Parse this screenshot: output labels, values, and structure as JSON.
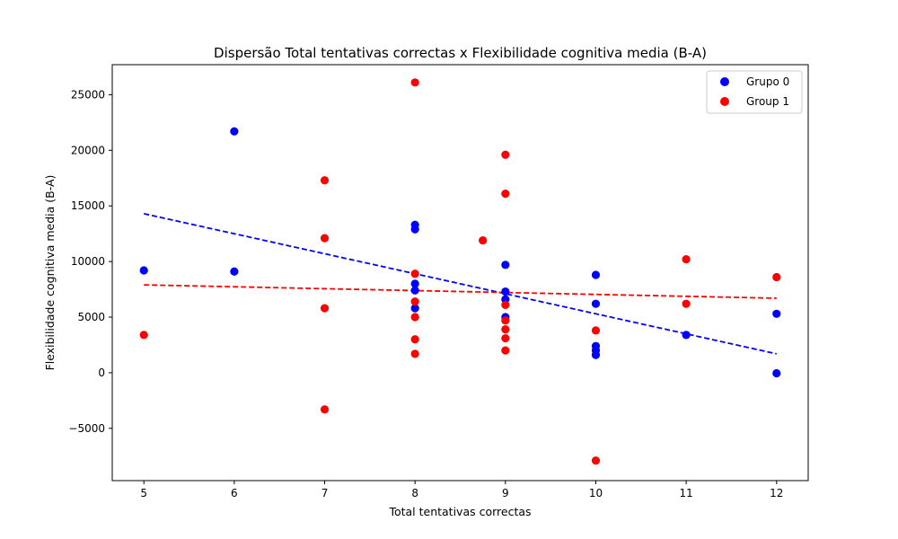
{
  "chart_data": {
    "type": "scatter",
    "title": "Dispersão Total tentativas correctas x Flexibilidade cognitiva media (B-A)",
    "xlabel": "Total tentativas correctas",
    "ylabel": "Flexibilidade cognitiva media (B-A)",
    "xlim": [
      4.65,
      12.35
    ],
    "ylim": [
      -9700,
      27700
    ],
    "xticks": [
      5,
      6,
      7,
      8,
      9,
      10,
      11,
      12
    ],
    "yticks": [
      -5000,
      0,
      5000,
      10000,
      15000,
      20000,
      25000
    ],
    "legend_position": "top-right",
    "grid": false,
    "series": [
      {
        "name": "Grupo 0",
        "color": "#0000ff",
        "points": [
          [
            5,
            9200
          ],
          [
            6,
            21700
          ],
          [
            6,
            9100
          ],
          [
            8,
            13300
          ],
          [
            8,
            12900
          ],
          [
            8,
            8000
          ],
          [
            8,
            7400
          ],
          [
            8,
            5800
          ],
          [
            9,
            9700
          ],
          [
            9,
            7300
          ],
          [
            9,
            6600
          ],
          [
            9,
            5000
          ],
          [
            10,
            8800
          ],
          [
            10,
            6200
          ],
          [
            10,
            2400
          ],
          [
            10,
            2000
          ],
          [
            10,
            1600
          ],
          [
            11,
            3400
          ],
          [
            12,
            5300
          ],
          [
            12,
            -50
          ]
        ],
        "trend": {
          "x": [
            5,
            12
          ],
          "y": [
            14300,
            1700
          ],
          "style": "dashed"
        }
      },
      {
        "name": "Group 1",
        "color": "#ff0000",
        "points": [
          [
            5,
            3400
          ],
          [
            7,
            17300
          ],
          [
            7,
            12100
          ],
          [
            7,
            5800
          ],
          [
            7,
            -3300
          ],
          [
            8,
            26100
          ],
          [
            8,
            8900
          ],
          [
            8,
            6400
          ],
          [
            8,
            5000
          ],
          [
            8,
            3000
          ],
          [
            8,
            1700
          ],
          [
            8.75,
            11900
          ],
          [
            9,
            19600
          ],
          [
            9,
            16100
          ],
          [
            9,
            6100
          ],
          [
            9,
            4700
          ],
          [
            9,
            3900
          ],
          [
            9,
            3100
          ],
          [
            9,
            2000
          ],
          [
            10,
            3800
          ],
          [
            10,
            -7900
          ],
          [
            11,
            10200
          ],
          [
            11,
            6200
          ],
          [
            12,
            8600
          ]
        ],
        "trend": {
          "x": [
            5,
            12
          ],
          "y": [
            7900,
            6700
          ],
          "style": "dashed"
        }
      }
    ]
  }
}
